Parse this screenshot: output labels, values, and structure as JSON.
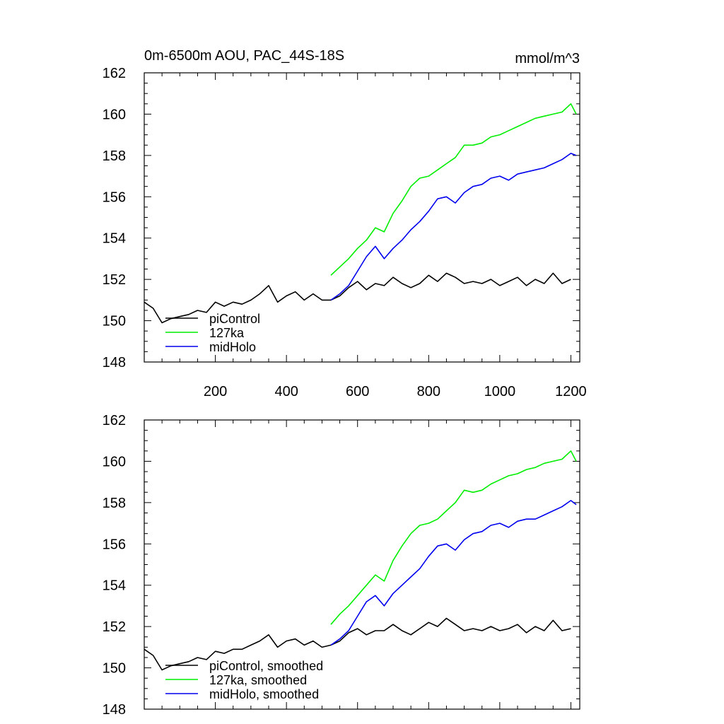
{
  "chart_data": [
    {
      "type": "line",
      "title": "0m-6500m AOU, PAC_44S-18S",
      "units_label": "mmol/m^3",
      "xlabel": "",
      "ylabel": "",
      "xlim": [
        0,
        1225
      ],
      "ylim": [
        148,
        162
      ],
      "xticks": [
        200,
        400,
        600,
        800,
        1000,
        1200
      ],
      "xtick_labels": [
        "200",
        "400",
        "600",
        "800",
        "1000",
        "1200"
      ],
      "yticks": [
        148,
        150,
        152,
        154,
        156,
        158,
        160,
        162
      ],
      "ytick_labels": [
        "148",
        "150",
        "152",
        "154",
        "156",
        "158",
        "160",
        "162"
      ],
      "grid": false,
      "legend_position": "bottom-left",
      "series": [
        {
          "name": "piControl",
          "color": "#000000",
          "x": [
            0,
            25,
            50,
            75,
            100,
            125,
            150,
            175,
            200,
            225,
            250,
            275,
            300,
            325,
            350,
            375,
            400,
            425,
            450,
            475,
            500,
            525,
            550,
            575,
            600,
            625,
            650,
            675,
            700,
            725,
            750,
            775,
            800,
            825,
            850,
            875,
            900,
            925,
            950,
            975,
            1000,
            1025,
            1050,
            1075,
            1100,
            1125,
            1150,
            1175,
            1200
          ],
          "values": [
            150.9,
            150.6,
            149.9,
            150.1,
            150.2,
            150.3,
            150.5,
            150.4,
            150.9,
            150.7,
            150.9,
            150.8,
            151.0,
            151.3,
            151.7,
            150.9,
            151.2,
            151.4,
            151.0,
            151.3,
            151.0,
            151.0,
            151.2,
            151.6,
            151.9,
            151.5,
            151.8,
            151.7,
            152.1,
            151.8,
            151.6,
            151.8,
            152.2,
            151.9,
            152.3,
            152.1,
            151.8,
            151.9,
            151.8,
            152.0,
            151.7,
            151.9,
            152.1,
            151.7,
            152.0,
            151.8,
            152.3,
            151.8,
            152.0
          ]
        },
        {
          "name": "127ka",
          "color": "#00ee00",
          "x": [
            525,
            550,
            575,
            600,
            625,
            650,
            675,
            700,
            725,
            750,
            775,
            800,
            825,
            850,
            875,
            900,
            925,
            950,
            975,
            1000,
            1025,
            1050,
            1075,
            1100,
            1125,
            1150,
            1175,
            1200,
            1215
          ],
          "values": [
            152.2,
            152.6,
            153.0,
            153.5,
            153.9,
            154.5,
            154.3,
            155.2,
            155.8,
            156.5,
            156.9,
            157.0,
            157.3,
            157.6,
            157.9,
            158.5,
            158.5,
            158.6,
            158.9,
            159.0,
            159.2,
            159.4,
            159.6,
            159.8,
            159.9,
            160.0,
            160.1,
            160.5,
            160.0
          ]
        },
        {
          "name": "midHolo",
          "color": "#0000ee",
          "x": [
            525,
            550,
            575,
            600,
            625,
            650,
            675,
            700,
            725,
            750,
            775,
            800,
            825,
            850,
            875,
            900,
            925,
            950,
            975,
            1000,
            1025,
            1050,
            1075,
            1100,
            1125,
            1150,
            1175,
            1200,
            1215
          ],
          "values": [
            151.0,
            151.3,
            151.7,
            152.4,
            153.1,
            153.6,
            153.0,
            153.5,
            153.9,
            154.4,
            154.8,
            155.3,
            155.9,
            156.0,
            155.7,
            156.2,
            156.5,
            156.6,
            156.9,
            157.0,
            156.8,
            157.1,
            157.2,
            157.3,
            157.4,
            157.6,
            157.8,
            158.1,
            158.0
          ]
        }
      ],
      "legend": [
        "piControl",
        "127ka",
        "midHolo"
      ]
    },
    {
      "type": "line",
      "title": "",
      "xlabel": "",
      "ylabel": "",
      "xlim": [
        0,
        1225
      ],
      "ylim": [
        148,
        162
      ],
      "xticks": [
        200,
        400,
        600,
        800,
        1000,
        1200
      ],
      "xtick_labels": [],
      "yticks": [
        148,
        150,
        152,
        154,
        156,
        158,
        160,
        162
      ],
      "ytick_labels": [
        "148",
        "150",
        "152",
        "154",
        "156",
        "158",
        "160",
        "162"
      ],
      "grid": false,
      "legend_position": "bottom-left",
      "series": [
        {
          "name": "piControl, smoothed",
          "color": "#000000",
          "x": [
            0,
            25,
            50,
            75,
            100,
            125,
            150,
            175,
            200,
            225,
            250,
            275,
            300,
            325,
            350,
            375,
            400,
            425,
            450,
            475,
            500,
            525,
            550,
            575,
            600,
            625,
            650,
            675,
            700,
            725,
            750,
            775,
            800,
            825,
            850,
            875,
            900,
            925,
            950,
            975,
            1000,
            1025,
            1050,
            1075,
            1100,
            1125,
            1150,
            1175,
            1200
          ],
          "values": [
            150.9,
            150.6,
            149.9,
            150.1,
            150.2,
            150.3,
            150.5,
            150.4,
            150.8,
            150.7,
            150.9,
            150.9,
            151.1,
            151.3,
            151.6,
            151.0,
            151.3,
            151.4,
            151.1,
            151.3,
            151.0,
            151.1,
            151.3,
            151.7,
            151.9,
            151.6,
            151.8,
            151.8,
            152.1,
            151.8,
            151.6,
            151.9,
            152.2,
            152.0,
            152.4,
            152.1,
            151.8,
            151.9,
            151.8,
            152.0,
            151.8,
            151.9,
            152.1,
            151.7,
            152.0,
            151.8,
            152.3,
            151.8,
            151.9
          ]
        },
        {
          "name": "127ka, smoothed",
          "color": "#00ee00",
          "x": [
            525,
            550,
            575,
            600,
            625,
            650,
            675,
            700,
            725,
            750,
            775,
            800,
            825,
            850,
            875,
            900,
            925,
            950,
            975,
            1000,
            1025,
            1050,
            1075,
            1100,
            1125,
            1150,
            1175,
            1200,
            1215
          ],
          "values": [
            152.1,
            152.6,
            153.0,
            153.5,
            154.0,
            154.5,
            154.2,
            155.2,
            155.9,
            156.5,
            156.9,
            157.0,
            157.2,
            157.6,
            158.0,
            158.6,
            158.5,
            158.6,
            158.9,
            159.1,
            159.3,
            159.4,
            159.6,
            159.7,
            159.9,
            160.0,
            160.1,
            160.5,
            160.0
          ]
        },
        {
          "name": "midHolo, smoothed",
          "color": "#0000ee",
          "x": [
            525,
            550,
            575,
            600,
            625,
            650,
            675,
            700,
            725,
            750,
            775,
            800,
            825,
            850,
            875,
            900,
            925,
            950,
            975,
            1000,
            1025,
            1050,
            1075,
            1100,
            1125,
            1150,
            1175,
            1200,
            1215
          ],
          "values": [
            151.1,
            151.4,
            151.8,
            152.5,
            153.2,
            153.5,
            153.0,
            153.6,
            154.0,
            154.4,
            154.8,
            155.4,
            155.9,
            156.0,
            155.7,
            156.2,
            156.5,
            156.6,
            156.9,
            157.0,
            156.8,
            157.1,
            157.2,
            157.2,
            157.4,
            157.6,
            157.8,
            158.1,
            157.9
          ]
        }
      ],
      "legend": [
        "piControl, smoothed",
        "127ka, smoothed",
        "midHolo, smoothed"
      ]
    }
  ]
}
